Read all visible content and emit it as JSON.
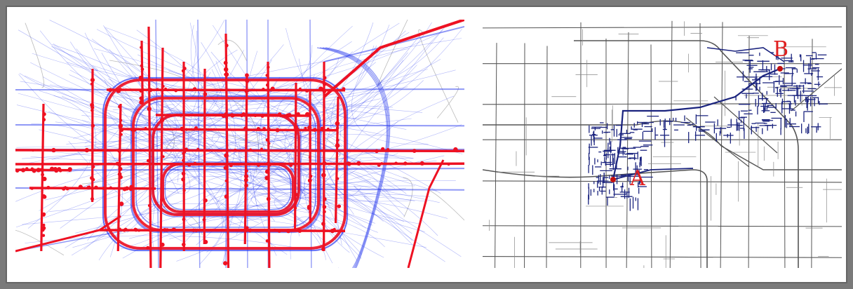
{
  "left_map": {
    "trajectory_color": "#2233ee",
    "node_color": "#ee1122"
  },
  "right_map": {
    "road_color": "#555555",
    "path_color": "#1a237e",
    "label_color": "#e02020",
    "labels": [
      {
        "id": "A",
        "text": "A"
      },
      {
        "id": "B",
        "text": "B"
      }
    ]
  }
}
